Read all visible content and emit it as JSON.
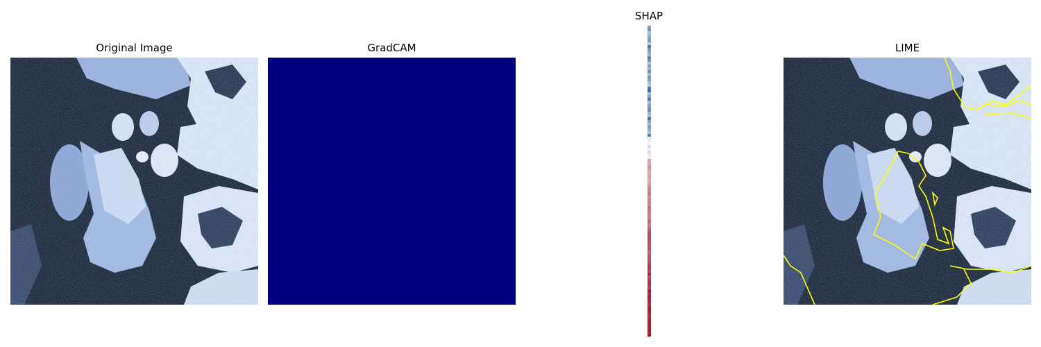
{
  "panels": [
    {
      "title": "Original Image",
      "icon": "ct-scan-image"
    },
    {
      "title": "GradCAM",
      "icon": "gradcam-heatmap",
      "fill_color": "#000080"
    },
    {
      "title": "SHAP",
      "icon": "shap-attribution-strip",
      "colors": [
        "#2166ac",
        "#f7f7f7",
        "#b2182b"
      ]
    },
    {
      "title": "LIME",
      "icon": "lime-overlay-image",
      "boundary_color": "#ffff00"
    }
  ]
}
